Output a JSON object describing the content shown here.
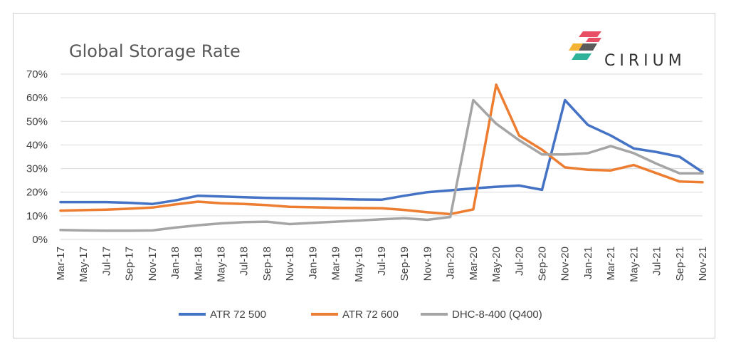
{
  "colors": {
    "atr500": "#4472C4",
    "atr600": "#ED7D31",
    "q400": "#A5A5A5",
    "grid": "#d9d9d9"
  },
  "logo": {
    "text": "CIRIUM",
    "colors": [
      "#E94F64",
      "#F5B335",
      "#2EB39A",
      "#5B5B5B"
    ]
  },
  "chart_data": {
    "type": "line",
    "title": "Global Storage Rate",
    "xlabel": "",
    "ylabel": "",
    "ylim": [
      0,
      70
    ],
    "ytick_values": [
      0,
      10,
      20,
      30,
      40,
      50,
      60,
      70
    ],
    "ytick_labels": [
      "0%",
      "10%",
      "20%",
      "30%",
      "40%",
      "50%",
      "60%",
      "70%"
    ],
    "grid": true,
    "legend_position": "bottom",
    "categories": [
      "Mar-17",
      "May-17",
      "Jul-17",
      "Sep-17",
      "Nov-17",
      "Jan-18",
      "Mar-18",
      "May-18",
      "Jul-18",
      "Sep-18",
      "Nov-18",
      "Jan-19",
      "Mar-19",
      "May-19",
      "Jul-19",
      "Sep-19",
      "Nov-19",
      "Jan-20",
      "Mar-20",
      "May-20",
      "Jul-20",
      "Sep-20",
      "Nov-20",
      "Jan-21",
      "Mar-21",
      "May-21",
      "Jul-21",
      "Sep-21",
      "Nov-21"
    ],
    "x_tick_labels": [
      "Mar-17",
      "May-17",
      "Jul-17",
      "Sep-17",
      "Nov-17",
      "Jan-18",
      "Mar-18",
      "May-18",
      "Jul-18",
      "Sep-18",
      "Nov-18",
      "Jan-19",
      "Mar-19",
      "May-19",
      "Jul-19",
      "Sep-19",
      "Nov-19",
      "Jan-20",
      "Mar-20",
      "May-20",
      "Jul-20",
      "Sep-20",
      "Nov-20",
      "Jan-21",
      "Mar-21",
      "May-21",
      "Jul-21",
      "Sep-21",
      "Nov-21"
    ],
    "series": [
      {
        "name": "ATR 72 500",
        "color_key": "atr500",
        "values": [
          15.8,
          15.8,
          15.8,
          15.5,
          15.0,
          16.5,
          18.5,
          18.2,
          17.9,
          17.6,
          17.4,
          17.3,
          17.1,
          16.9,
          16.8,
          18.5,
          20.0,
          20.8,
          21.6,
          22.3,
          22.8,
          21.0,
          59.0,
          48.5,
          44.0,
          38.5,
          37.0,
          35.0,
          28.5
        ]
      },
      {
        "name": "ATR 72 600",
        "color_key": "atr600",
        "values": [
          12.2,
          12.4,
          12.6,
          13.0,
          13.5,
          14.8,
          16.0,
          15.3,
          15.0,
          14.5,
          13.8,
          13.6,
          13.4,
          13.3,
          13.2,
          12.5,
          11.5,
          10.7,
          12.7,
          65.5,
          44.0,
          38.0,
          30.5,
          29.5,
          29.2,
          31.5,
          28.0,
          24.5,
          24.2
        ]
      },
      {
        "name": "DHC-8-400 (Q400)",
        "color_key": "q400",
        "values": [
          4.0,
          3.8,
          3.7,
          3.7,
          3.8,
          5.0,
          6.0,
          6.8,
          7.3,
          7.5,
          6.5,
          7.0,
          7.5,
          8.0,
          8.5,
          9.0,
          8.3,
          9.5,
          59.0,
          49.0,
          42.0,
          36.0,
          36.0,
          36.5,
          39.5,
          36.5,
          32.0,
          28.0,
          28.0
        ]
      }
    ]
  }
}
